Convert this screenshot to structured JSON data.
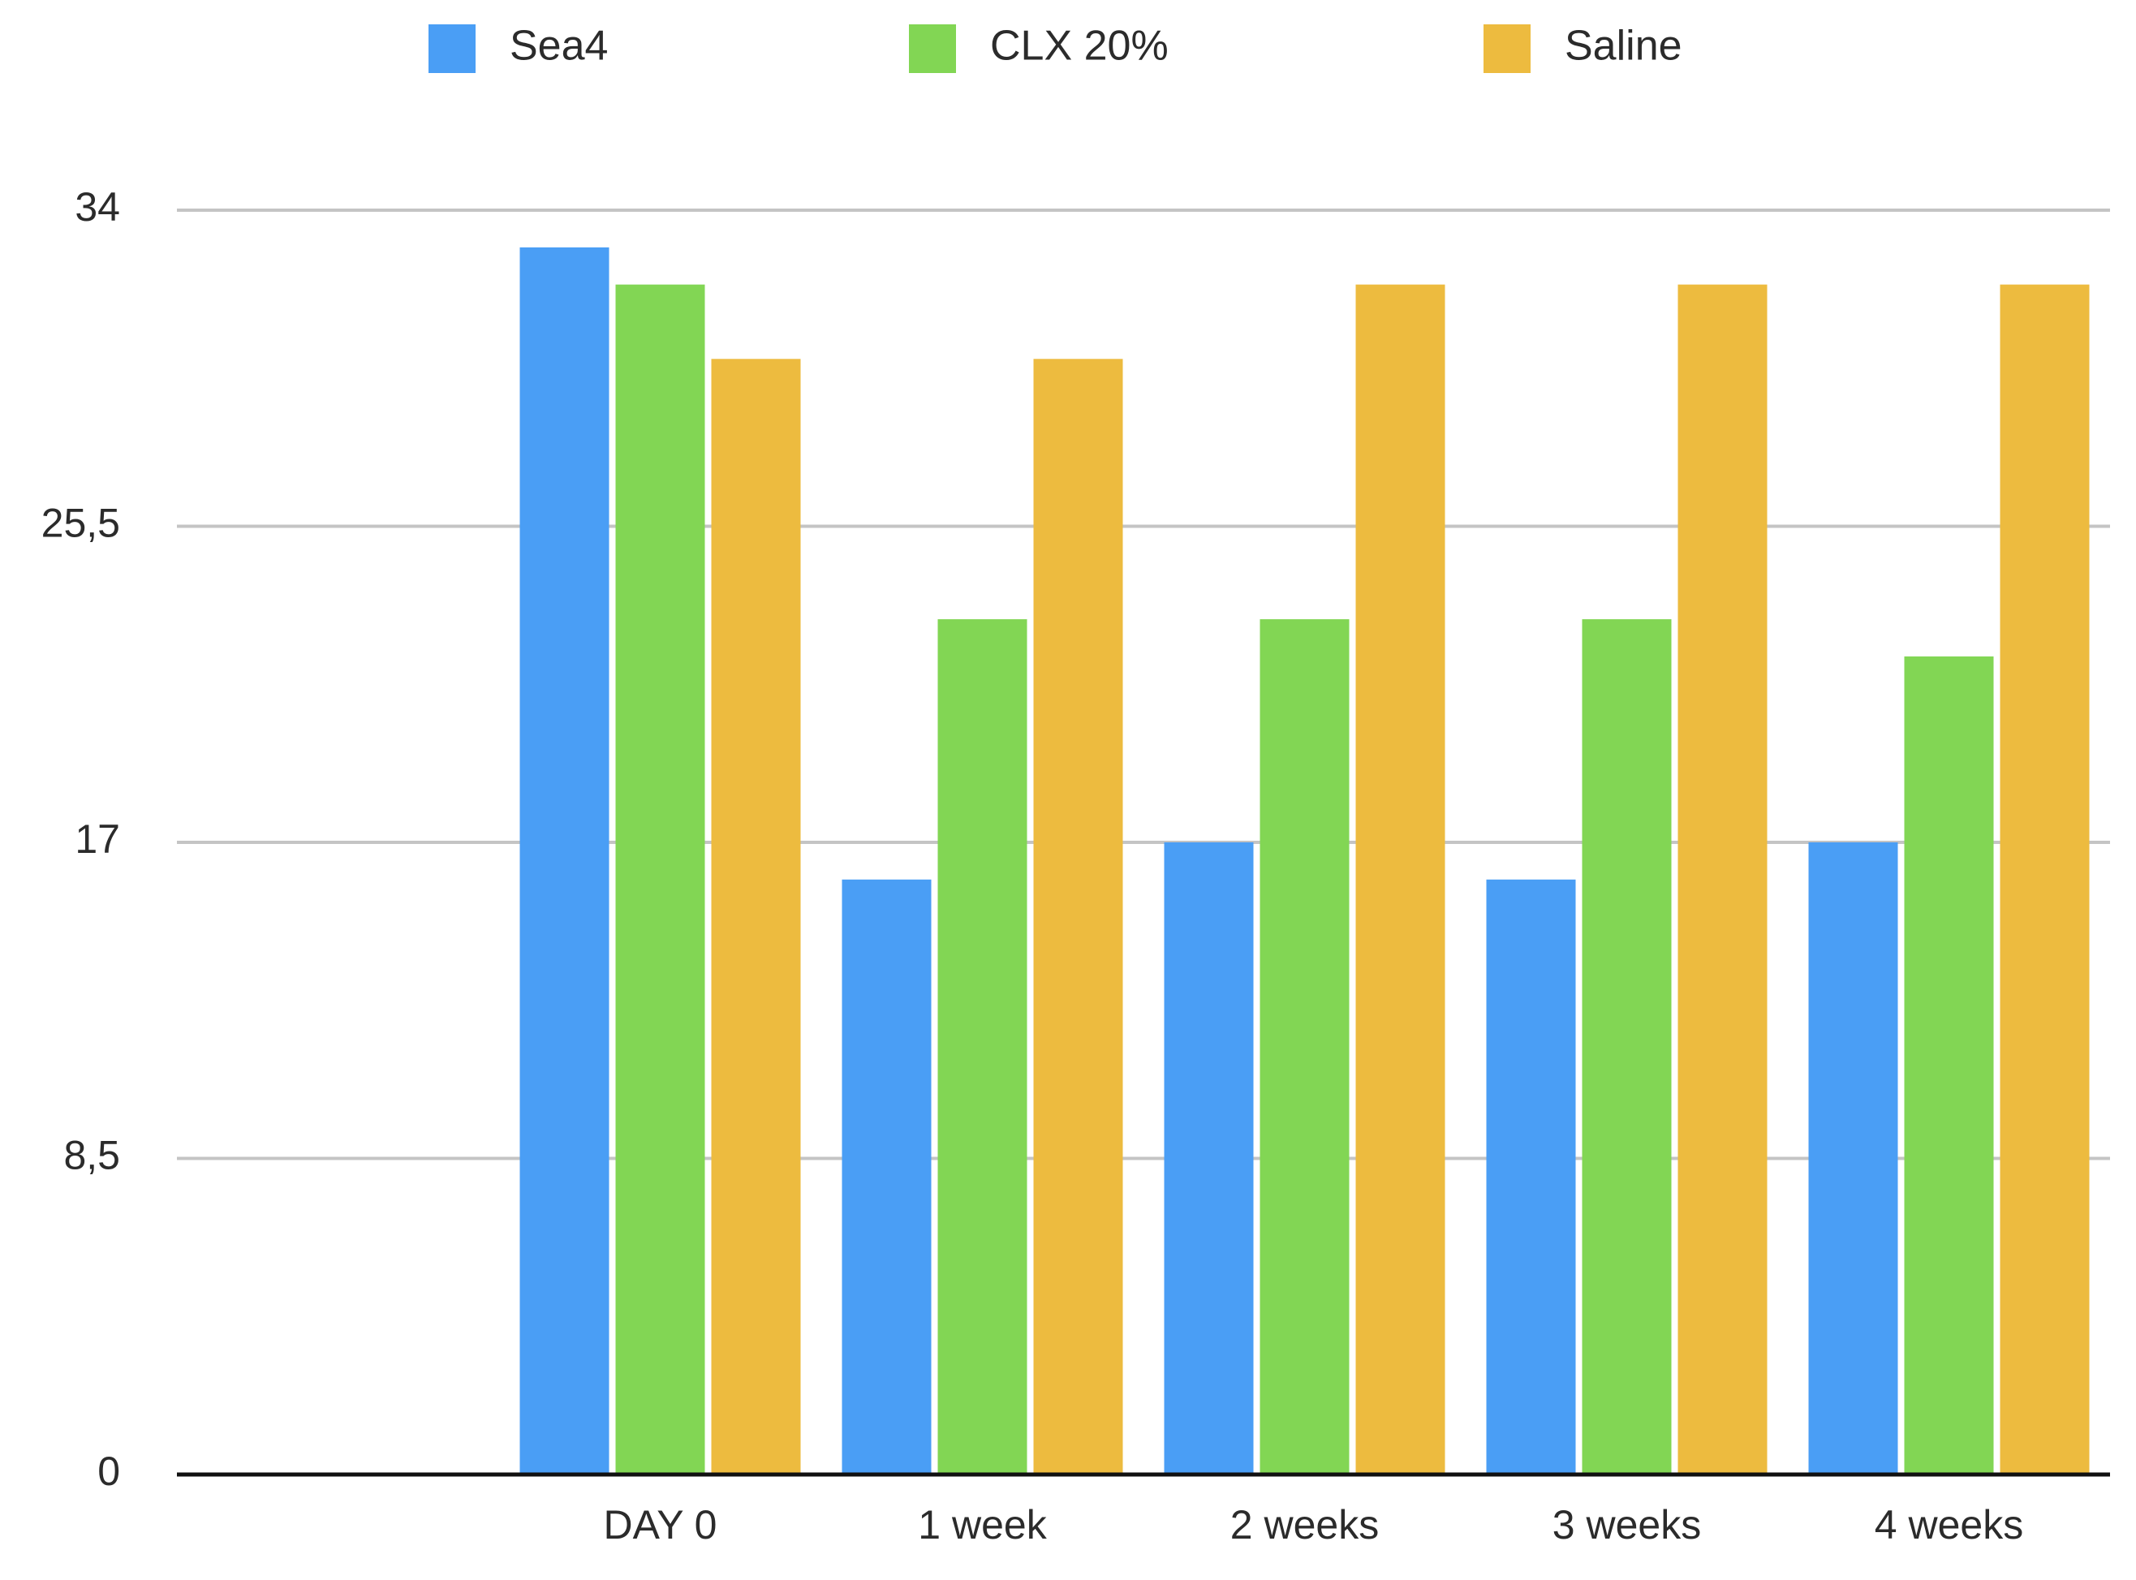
{
  "chart_data": {
    "type": "bar",
    "title": "",
    "xlabel": "",
    "ylabel": "",
    "categories": [
      "",
      "DAY 0",
      "1 week",
      "2 weeks",
      "3 weeks",
      "4 weeks"
    ],
    "series": [
      {
        "name": "Sea4",
        "color": "#4A9EF5",
        "values": [
          null,
          33,
          16,
          17,
          16,
          17
        ]
      },
      {
        "name": "CLX 20%",
        "color": "#82D654",
        "values": [
          null,
          32,
          23,
          23,
          23,
          22
        ]
      },
      {
        "name": "Saline",
        "color": "#EDBB3F",
        "values": [
          null,
          30,
          30,
          32,
          32,
          32
        ]
      }
    ],
    "ylim": [
      0,
      34
    ],
    "yticks": [
      0,
      8.5,
      17,
      25.5,
      34
    ],
    "ytick_labels": [
      "0",
      "8,5",
      "17",
      "25,5",
      "34"
    ],
    "grid": true,
    "legend_position": "top"
  }
}
